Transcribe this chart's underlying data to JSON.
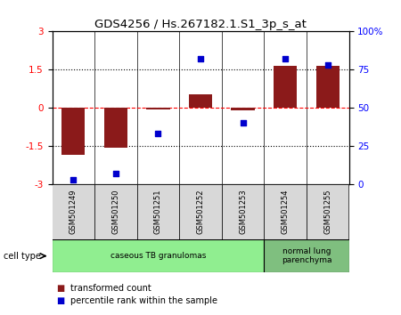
{
  "title": "GDS4256 / Hs.267182.1.S1_3p_s_at",
  "samples": [
    "GSM501249",
    "GSM501250",
    "GSM501251",
    "GSM501252",
    "GSM501253",
    "GSM501254",
    "GSM501255"
  ],
  "transformed_count": [
    -1.85,
    -1.55,
    -0.05,
    0.55,
    -0.1,
    1.65,
    1.65
  ],
  "percentile_rank": [
    3,
    7,
    33,
    82,
    40,
    82,
    78
  ],
  "ylim_left": [
    -3,
    3
  ],
  "ylim_right": [
    0,
    100
  ],
  "yticks_left": [
    -3,
    -1.5,
    0,
    1.5,
    3
  ],
  "ytick_labels_left": [
    "-3",
    "-1.5",
    "0",
    "1.5",
    "3"
  ],
  "yticks_right": [
    0,
    25,
    50,
    75,
    100
  ],
  "ytick_labels_right": [
    "0",
    "25",
    "50",
    "75",
    "100%"
  ],
  "bar_color": "#8B1A1A",
  "dot_color": "#0000CD",
  "dotted_lines": [
    -1.5,
    1.5
  ],
  "cell_type_groups": [
    {
      "label": "caseous TB granulomas",
      "indices": [
        0,
        1,
        2,
        3,
        4
      ],
      "color": "#90EE90"
    },
    {
      "label": "normal lung\nparenchyma",
      "indices": [
        5,
        6
      ],
      "color": "#7FBF7F"
    }
  ],
  "cell_type_label": "cell type",
  "legend_bar_label": "transformed count",
  "legend_dot_label": "percentile rank within the sample",
  "bg_color": "#D8D8D8",
  "plot_bg": "#FFFFFF",
  "bar_width": 0.55
}
